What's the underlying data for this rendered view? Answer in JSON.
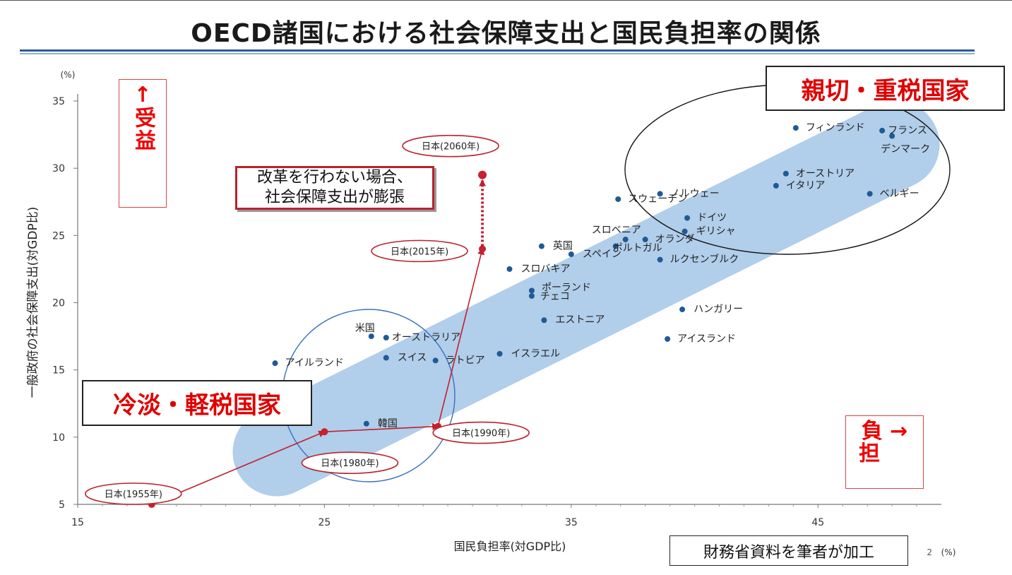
{
  "page": {
    "title": "OECD諸国における社会保障支出と国民負担率の関係",
    "page_number": "2",
    "source_note": "財務省資料を筆者が加工"
  },
  "annotations": {
    "benefit_arrow": "↑",
    "benefit": "受益",
    "burden": "負",
    "burden_arrow": "→",
    "burden2": "担",
    "kind_heavy_tax": "親切・重税国家",
    "cold_light_tax": "冷淡・軽税国家",
    "reform_line1": "改革を行わない場合、",
    "reform_line2": "社会保障支出が膨張"
  },
  "chart_data": {
    "type": "scatter",
    "title": "",
    "xlabel": "国民負担率(対GDP比)",
    "ylabel": "一般政府の社会保障支出(対GDP比)",
    "x_unit": "(%)",
    "y_unit": "(%)",
    "xlim": [
      15,
      50
    ],
    "ylim": [
      5,
      35
    ],
    "xticks": [
      15,
      25,
      35,
      45
    ],
    "yticks": [
      5,
      10,
      15,
      20,
      25,
      30,
      35
    ],
    "grid": false,
    "countries": [
      {
        "name": "フィンランド",
        "x": 44.1,
        "y": 33.0
      },
      {
        "name": "フランス",
        "x": 47.6,
        "y": 32.8
      },
      {
        "name": "デンマーク",
        "x": 48.0,
        "y": 32.4
      },
      {
        "name": "オーストリア",
        "x": 43.7,
        "y": 29.6
      },
      {
        "name": "イタリア",
        "x": 43.3,
        "y": 28.7
      },
      {
        "name": "ベルギー",
        "x": 47.1,
        "y": 28.1
      },
      {
        "name": "ノルウェー",
        "x": 38.6,
        "y": 28.1
      },
      {
        "name": "スウェーデン",
        "x": 36.9,
        "y": 27.7
      },
      {
        "name": "ドイツ",
        "x": 39.7,
        "y": 26.3
      },
      {
        "name": "ギリシャ",
        "x": 39.6,
        "y": 25.3
      },
      {
        "name": "スロベニア",
        "x": 37.2,
        "y": 24.7
      },
      {
        "name": "オランダ",
        "x": 38.0,
        "y": 24.7
      },
      {
        "name": "ポルトガル",
        "x": 36.8,
        "y": 24.2
      },
      {
        "name": "スペイン",
        "x": 35.0,
        "y": 23.6
      },
      {
        "name": "英国",
        "x": 33.8,
        "y": 24.2
      },
      {
        "name": "ルクセンブルク",
        "x": 38.6,
        "y": 23.2
      },
      {
        "name": "スロバキア",
        "x": 32.5,
        "y": 22.5
      },
      {
        "name": "ポーランド",
        "x": 33.4,
        "y": 20.9
      },
      {
        "name": "チェコ",
        "x": 33.4,
        "y": 20.5
      },
      {
        "name": "ハンガリー",
        "x": 39.5,
        "y": 19.5
      },
      {
        "name": "エストニア",
        "x": 33.9,
        "y": 18.7
      },
      {
        "name": "アイスランド",
        "x": 38.9,
        "y": 17.3
      },
      {
        "name": "米国",
        "x": 26.9,
        "y": 17.5
      },
      {
        "name": "オーストラリア",
        "x": 27.5,
        "y": 17.4
      },
      {
        "name": "イスラエル",
        "x": 32.1,
        "y": 16.2
      },
      {
        "name": "スイス",
        "x": 27.5,
        "y": 15.9
      },
      {
        "name": "ラトビア",
        "x": 29.5,
        "y": 15.7
      },
      {
        "name": "アイルランド",
        "x": 23.0,
        "y": 15.5
      },
      {
        "name": "韓国",
        "x": 26.7,
        "y": 11.0
      }
    ],
    "japan": [
      {
        "label": "日本(1955年)",
        "x": 18.0,
        "y": 5.0
      },
      {
        "label": "日本(1980年)",
        "x": 25.0,
        "y": 10.4
      },
      {
        "label": "日本(1990年)",
        "x": 29.6,
        "y": 10.8
      },
      {
        "label": "日本(2015年)",
        "x": 31.4,
        "y": 24.0
      },
      {
        "label": "日本(2060年)",
        "x": 31.4,
        "y": 29.5
      }
    ]
  }
}
